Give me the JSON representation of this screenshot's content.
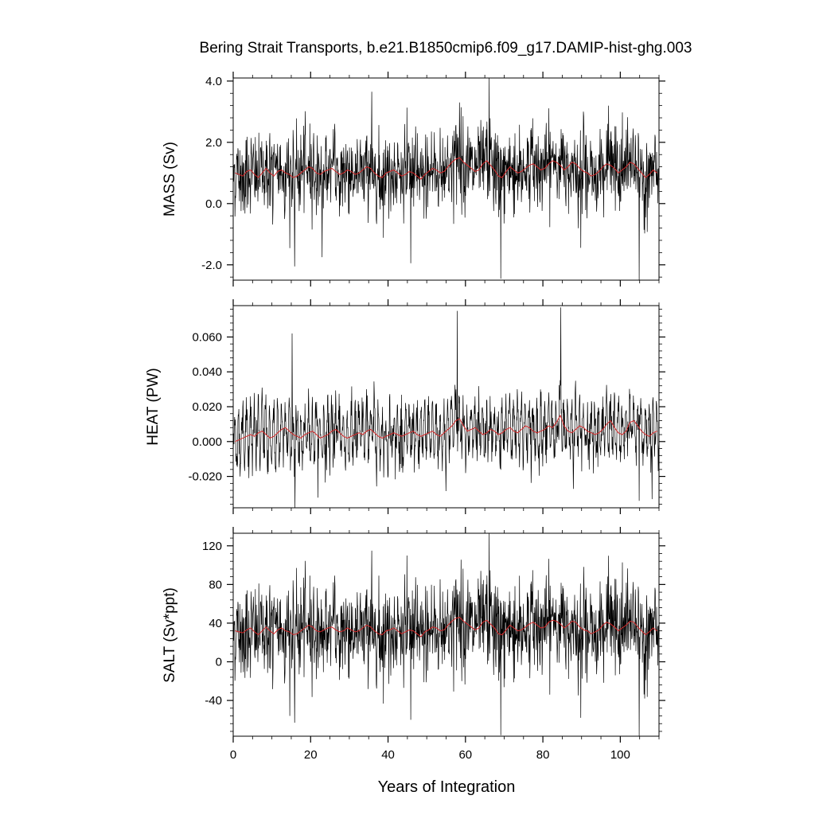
{
  "chart_data": [
    {
      "type": "line",
      "panel": "mass",
      "title": "Bering Strait Transports, b.e21.B1850cmip6.f09_g17.DAMIP-hist-ghg.003",
      "ylabel": "MASS (Sv)",
      "xlabel": "",
      "xlim": [
        0,
        110
      ],
      "ylim": [
        -2.5,
        4.1
      ],
      "yticks": [
        -2.0,
        0.0,
        2.0,
        4.0
      ],
      "ytick_labels": [
        "-2.0",
        "0.0",
        "2.0",
        "4.0"
      ],
      "grid": false,
      "series": [
        {
          "color": "#000000",
          "sampling": "monthly, x = year + (month - 0.5)/12",
          "summary": {
            "typical_low": -0.5,
            "typical_high": 2.4,
            "mean": 1.0
          },
          "extremes": [
            {
              "x": 15.9,
              "y": -2.05
            },
            {
              "x": 23.0,
              "y": -1.75
            },
            {
              "x": 35.8,
              "y": 3.65
            },
            {
              "x": 45.9,
              "y": -1.95
            },
            {
              "x": 58.5,
              "y": 3.3
            },
            {
              "x": 66.1,
              "y": 4.1
            },
            {
              "x": 69.1,
              "y": -2.45
            },
            {
              "x": 104.9,
              "y": -2.5
            },
            {
              "x": 90.5,
              "y": 3.0
            }
          ]
        },
        {
          "color": "#d62728",
          "sampling": "annual mean",
          "x": [
            0.5,
            1.5,
            2.5,
            3.5,
            4.5,
            5.5,
            6.5,
            7.5,
            8.5,
            9.5,
            10.5,
            11.5,
            12.5,
            13.5,
            14.5,
            15.5,
            16.5,
            17.5,
            18.5,
            19.5,
            20.5,
            21.5,
            22.5,
            23.5,
            24.5,
            25.5,
            26.5,
            27.5,
            28.5,
            29.5,
            30.5,
            31.5,
            32.5,
            33.5,
            34.5,
            35.5,
            36.5,
            37.5,
            38.5,
            39.5,
            40.5,
            41.5,
            42.5,
            43.5,
            44.5,
            45.5,
            46.5,
            47.5,
            48.5,
            49.5,
            50.5,
            51.5,
            52.5,
            53.5,
            54.5,
            55.5,
            56.5,
            57.5,
            58.5,
            59.5,
            60.5,
            61.5,
            62.5,
            63.5,
            64.5,
            65.5,
            66.5,
            67.5,
            68.5,
            69.5,
            70.5,
            71.5,
            72.5,
            73.5,
            74.5,
            75.5,
            76.5,
            77.5,
            78.5,
            79.5,
            80.5,
            81.5,
            82.5,
            83.5,
            84.5,
            85.5,
            86.5,
            87.5,
            88.5,
            89.5,
            90.5,
            91.5,
            92.5,
            93.5,
            94.5,
            95.5,
            96.5,
            97.5,
            98.5,
            99.5,
            100.5,
            101.5,
            102.5,
            103.5,
            104.5,
            105.5,
            106.5,
            107.5,
            108.5,
            109.5
          ],
          "y": [
            1.0,
            0.95,
            0.9,
            1.05,
            1.1,
            0.95,
            0.85,
            1.0,
            1.15,
            1.0,
            0.9,
            1.05,
            1.1,
            1.0,
            0.95,
            0.85,
            0.9,
            1.0,
            1.1,
            1.2,
            1.15,
            1.0,
            0.95,
            1.05,
            1.1,
            1.15,
            1.05,
            0.95,
            1.0,
            1.1,
            1.05,
            0.95,
            1.0,
            1.1,
            1.2,
            1.15,
            1.0,
            0.9,
            0.85,
            1.0,
            1.05,
            1.1,
            1.0,
            0.9,
            0.95,
            1.05,
            1.0,
            0.9,
            0.8,
            0.95,
            1.05,
            1.15,
            1.1,
            1.0,
            1.05,
            1.2,
            1.35,
            1.45,
            1.5,
            1.35,
            1.25,
            1.15,
            1.05,
            1.1,
            1.3,
            1.4,
            1.25,
            1.1,
            0.9,
            0.85,
            1.05,
            1.2,
            1.1,
            1.0,
            1.05,
            1.15,
            1.25,
            1.3,
            1.2,
            1.1,
            1.15,
            1.3,
            1.4,
            1.35,
            1.25,
            1.1,
            1.2,
            1.35,
            1.3,
            1.15,
            1.05,
            1.0,
            0.9,
            0.95,
            1.05,
            1.2,
            1.3,
            1.25,
            1.15,
            1.0,
            1.1,
            1.2,
            1.35,
            1.3,
            1.15,
            1.0,
            0.85,
            0.95,
            1.1,
            1.0
          ]
        }
      ]
    },
    {
      "type": "line",
      "panel": "heat",
      "ylabel": "HEAT (PW)",
      "xlabel": "",
      "xlim": [
        0,
        110
      ],
      "ylim": [
        -0.038,
        0.078
      ],
      "yticks": [
        -0.02,
        0.0,
        0.02,
        0.04,
        0.06
      ],
      "ytick_labels": [
        "-0.020",
        "0.000",
        "0.020",
        "0.040",
        "0.060"
      ],
      "grid": false,
      "series": [
        {
          "color": "#000000",
          "sampling": "monthly, x = year + (month - 0.5)/12",
          "summary": {
            "typical_low": -0.015,
            "typical_high": 0.035,
            "mean": 0.005
          },
          "extremes": [
            {
              "x": 15.2,
              "y": 0.062
            },
            {
              "x": 16.0,
              "y": -0.038
            },
            {
              "x": 57.9,
              "y": 0.075
            },
            {
              "x": 84.6,
              "y": 0.077
            },
            {
              "x": 104.9,
              "y": -0.034
            },
            {
              "x": 108.2,
              "y": -0.033
            }
          ]
        },
        {
          "color": "#d62728",
          "sampling": "annual mean",
          "x": [
            0.5,
            1.5,
            2.5,
            3.5,
            4.5,
            5.5,
            6.5,
            7.5,
            8.5,
            9.5,
            10.5,
            11.5,
            12.5,
            13.5,
            14.5,
            15.5,
            16.5,
            17.5,
            18.5,
            19.5,
            20.5,
            21.5,
            22.5,
            23.5,
            24.5,
            25.5,
            26.5,
            27.5,
            28.5,
            29.5,
            30.5,
            31.5,
            32.5,
            33.5,
            34.5,
            35.5,
            36.5,
            37.5,
            38.5,
            39.5,
            40.5,
            41.5,
            42.5,
            43.5,
            44.5,
            45.5,
            46.5,
            47.5,
            48.5,
            49.5,
            50.5,
            51.5,
            52.5,
            53.5,
            54.5,
            55.5,
            56.5,
            57.5,
            58.5,
            59.5,
            60.5,
            61.5,
            62.5,
            63.5,
            64.5,
            65.5,
            66.5,
            67.5,
            68.5,
            69.5,
            70.5,
            71.5,
            72.5,
            73.5,
            74.5,
            75.5,
            76.5,
            77.5,
            78.5,
            79.5,
            80.5,
            81.5,
            82.5,
            83.5,
            84.5,
            85.5,
            86.5,
            87.5,
            88.5,
            89.5,
            90.5,
            91.5,
            92.5,
            93.5,
            94.5,
            95.5,
            96.5,
            97.5,
            98.5,
            99.5,
            100.5,
            101.5,
            102.5,
            103.5,
            104.5,
            105.5,
            106.5,
            107.5,
            108.5,
            109.5
          ],
          "y": [
            0.0,
            0.001,
            0.002,
            0.003,
            0.004,
            0.003,
            0.005,
            0.006,
            0.004,
            0.002,
            0.003,
            0.005,
            0.007,
            0.008,
            0.006,
            0.004,
            0.003,
            0.002,
            0.004,
            0.005,
            0.006,
            0.004,
            0.002,
            0.003,
            0.004,
            0.006,
            0.007,
            0.005,
            0.003,
            0.002,
            0.003,
            0.004,
            0.005,
            0.004,
            0.006,
            0.007,
            0.005,
            0.003,
            0.002,
            0.003,
            0.004,
            0.005,
            0.004,
            0.003,
            0.004,
            0.005,
            0.006,
            0.004,
            0.003,
            0.004,
            0.005,
            0.006,
            0.004,
            0.003,
            0.005,
            0.007,
            0.009,
            0.012,
            0.013,
            0.009,
            0.006,
            0.007,
            0.008,
            0.006,
            0.004,
            0.005,
            0.007,
            0.006,
            0.004,
            0.005,
            0.007,
            0.008,
            0.006,
            0.005,
            0.007,
            0.009,
            0.008,
            0.006,
            0.005,
            0.006,
            0.007,
            0.009,
            0.008,
            0.011,
            0.015,
            0.009,
            0.006,
            0.005,
            0.007,
            0.009,
            0.008,
            0.006,
            0.005,
            0.004,
            0.005,
            0.007,
            0.01,
            0.012,
            0.008,
            0.005,
            0.004,
            0.006,
            0.011,
            0.012,
            0.009,
            0.006,
            0.004,
            0.003,
            0.005,
            0.006
          ]
        }
      ]
    },
    {
      "type": "line",
      "panel": "salt",
      "ylabel": "SALT (Sv*ppt)",
      "xlabel": "Years of Integration",
      "xlim": [
        0,
        110
      ],
      "xticks": [
        0,
        20,
        40,
        60,
        80,
        100
      ],
      "xtick_labels": [
        "0",
        "20",
        "40",
        "60",
        "80",
        "100"
      ],
      "ylim": [
        -77,
        133
      ],
      "yticks": [
        -40,
        0,
        40,
        80,
        120
      ],
      "ytick_labels": [
        "-40",
        "0",
        "40",
        "80",
        "120"
      ],
      "grid": false,
      "series": [
        {
          "color": "#000000",
          "sampling": "monthly, x = year + (month - 0.5)/12",
          "summary": {
            "typical_low": -20,
            "typical_high": 85,
            "mean": 33
          },
          "extremes": [
            {
              "x": 15.9,
              "y": -63
            },
            {
              "x": 35.8,
              "y": 115
            },
            {
              "x": 45.9,
              "y": -60
            },
            {
              "x": 66.1,
              "y": 133
            },
            {
              "x": 69.1,
              "y": -76
            },
            {
              "x": 104.9,
              "y": -77
            }
          ]
        },
        {
          "color": "#d62728",
          "sampling": "annual mean",
          "x": [
            0.5,
            1.5,
            2.5,
            3.5,
            4.5,
            5.5,
            6.5,
            7.5,
            8.5,
            9.5,
            10.5,
            11.5,
            12.5,
            13.5,
            14.5,
            15.5,
            16.5,
            17.5,
            18.5,
            19.5,
            20.5,
            21.5,
            22.5,
            23.5,
            24.5,
            25.5,
            26.5,
            27.5,
            28.5,
            29.5,
            30.5,
            31.5,
            32.5,
            33.5,
            34.5,
            35.5,
            36.5,
            37.5,
            38.5,
            39.5,
            40.5,
            41.5,
            42.5,
            43.5,
            44.5,
            45.5,
            46.5,
            47.5,
            48.5,
            49.5,
            50.5,
            51.5,
            52.5,
            53.5,
            54.5,
            55.5,
            56.5,
            57.5,
            58.5,
            59.5,
            60.5,
            61.5,
            62.5,
            63.5,
            64.5,
            65.5,
            66.5,
            67.5,
            68.5,
            69.5,
            70.5,
            71.5,
            72.5,
            73.5,
            74.5,
            75.5,
            76.5,
            77.5,
            78.5,
            79.5,
            80.5,
            81.5,
            82.5,
            83.5,
            84.5,
            85.5,
            86.5,
            87.5,
            88.5,
            89.5,
            90.5,
            91.5,
            92.5,
            93.5,
            94.5,
            95.5,
            96.5,
            97.5,
            98.5,
            99.5,
            100.5,
            101.5,
            102.5,
            103.5,
            104.5,
            105.5,
            106.5,
            107.5,
            108.5,
            109.5
          ],
          "y": [
            32,
            31,
            30,
            33,
            35,
            31,
            28,
            32,
            36,
            32,
            29,
            33,
            35,
            32,
            31,
            28,
            29,
            32,
            35,
            38,
            36,
            32,
            31,
            33,
            35,
            36,
            33,
            31,
            32,
            35,
            33,
            31,
            32,
            35,
            38,
            36,
            32,
            29,
            28,
            32,
            33,
            35,
            32,
            29,
            31,
            33,
            32,
            29,
            26,
            31,
            33,
            36,
            35,
            32,
            33,
            38,
            42,
            45,
            46,
            42,
            39,
            36,
            33,
            35,
            41,
            43,
            39,
            35,
            29,
            28,
            33,
            38,
            35,
            32,
            33,
            36,
            39,
            41,
            38,
            35,
            36,
            41,
            43,
            42,
            39,
            35,
            38,
            42,
            41,
            36,
            33,
            32,
            29,
            31,
            33,
            38,
            41,
            39,
            36,
            32,
            35,
            38,
            42,
            41,
            36,
            32,
            28,
            31,
            35,
            32
          ]
        }
      ]
    }
  ]
}
